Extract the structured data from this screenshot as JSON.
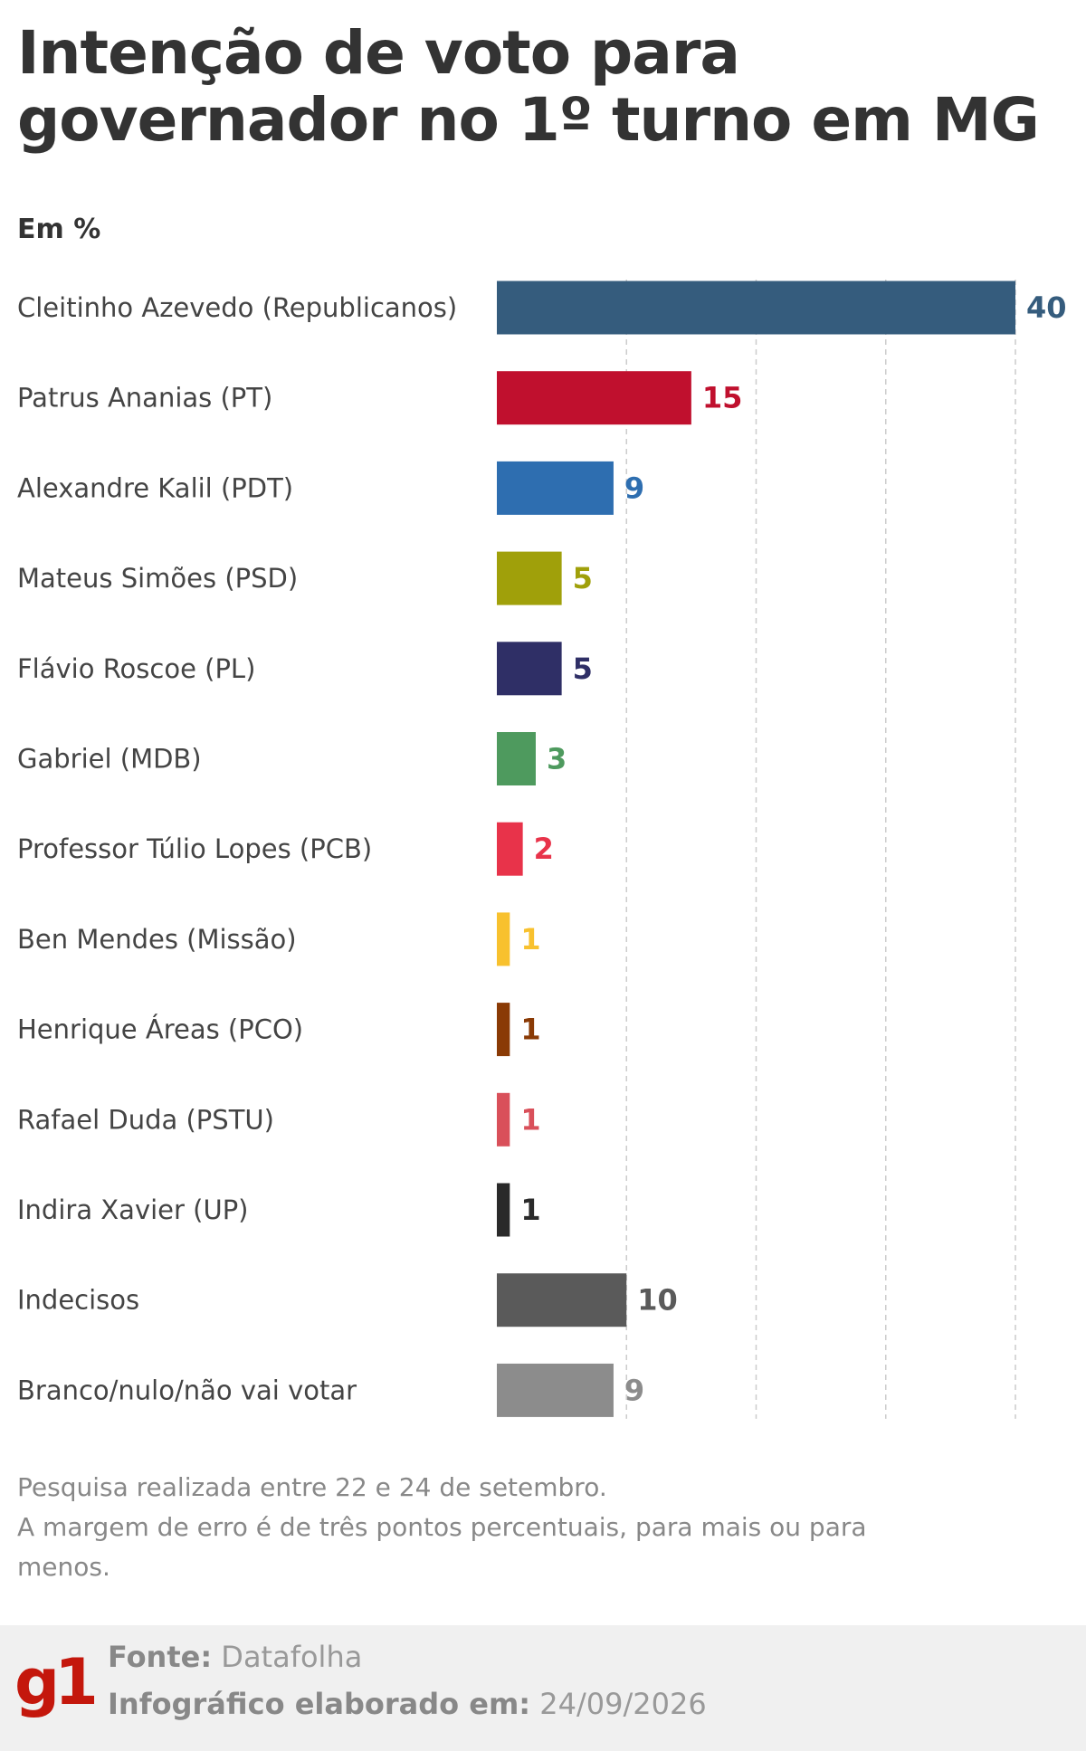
{
  "chart_data": {
    "type": "hbar",
    "title": "Intenção de voto para governador no 1º turno em MG",
    "subtitle": "Em %",
    "categories": [
      "Cleitinho Azevedo (Republicanos)",
      "Patrus Ananias (PT)",
      "Alexandre Kalil (PDT)",
      "Mateus Simões (PSD)",
      "Flávio Roscoe (PL)",
      "Gabriel (MDB)",
      "Professor Túlio Lopes (PCB)",
      "Ben Mendes (Missão)",
      "Henrique Áreas (PCO)",
      "Rafael Duda (PSTU)",
      "Indira Xavier (UP)",
      "Indecisos",
      "Branco/nulo/não vai votar"
    ],
    "values": [
      40,
      15,
      9,
      5,
      5,
      3,
      2,
      1,
      1,
      1,
      1,
      10,
      9
    ],
    "colors": [
      "#355c7d",
      "#c0102e",
      "#2e6eb0",
      "#a0a00a",
      "#2f2f66",
      "#4e9a5e",
      "#e8334a",
      "#f8c12e",
      "#8a3a05",
      "#d9505a",
      "#2a2a2a",
      "#5a5a5a",
      "#8c8c8c"
    ],
    "xlim": [
      0,
      40
    ],
    "xticks": [
      10,
      20,
      30,
      40
    ],
    "grid": true,
    "note": [
      "Pesquisa realizada entre 22 e 24 de setembro.",
      "A margem de erro é de três pontos percentuais, para mais ou para menos."
    ],
    "logo": "g1",
    "source_label": "Fonte:",
    "source": "Datafolha",
    "date_label": "Infográfico elaborado em:",
    "date": "24/09/2026"
  }
}
